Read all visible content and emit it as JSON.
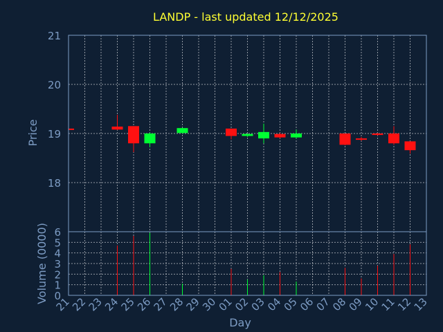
{
  "chart_data": {
    "type": "candlestick",
    "title": "LANDP - last updated 12/12/2025",
    "xlabel": "Day",
    "price_panel": {
      "ylabel": "Price",
      "ylim": [
        17.0,
        21.0
      ],
      "yticks": [
        18,
        19,
        20,
        21
      ]
    },
    "volume_panel": {
      "ylabel": "Volume (0000)",
      "ylim": [
        0,
        6
      ],
      "yticks": [
        0,
        1,
        2,
        3,
        4,
        5,
        6
      ]
    },
    "grid": true,
    "colors": {
      "up": "#00ff33",
      "down": "#ff1111",
      "title": "#ffff33",
      "axis": "#7d9cc4",
      "background": "#0f1f33"
    },
    "x_tick_labels": [
      "21",
      "22",
      "23",
      "24",
      "25",
      "26",
      "27",
      "28",
      "29",
      "30",
      "01",
      "02",
      "03",
      "04",
      "05",
      "06",
      "07",
      "08",
      "09",
      "10",
      "11",
      "12",
      "13"
    ],
    "candles": [
      {
        "day": "21",
        "open": 19.1,
        "high": 19.1,
        "low": 19.08,
        "close": 19.08,
        "volume": 0
      },
      {
        "day": "24",
        "open": 19.14,
        "high": 19.38,
        "low": 19.07,
        "close": 19.08,
        "volume": 4.7
      },
      {
        "day": "25",
        "open": 19.15,
        "high": 19.15,
        "low": 18.62,
        "close": 18.8,
        "volume": 5.6
      },
      {
        "day": "26",
        "open": 18.8,
        "high": 19.02,
        "low": 18.72,
        "close": 19.0,
        "volume": 5.9
      },
      {
        "day": "28",
        "open": 19.01,
        "high": 19.12,
        "low": 19.0,
        "close": 19.11,
        "volume": 1.1
      },
      {
        "day": "01",
        "open": 19.1,
        "high": 19.1,
        "low": 18.88,
        "close": 18.95,
        "volume": 2.5
      },
      {
        "day": "02",
        "open": 18.95,
        "high": 19.0,
        "low": 18.93,
        "close": 18.99,
        "volume": 1.5
      },
      {
        "day": "03",
        "open": 18.9,
        "high": 19.2,
        "low": 18.8,
        "close": 19.03,
        "volume": 1.9
      },
      {
        "day": "04",
        "open": 18.99,
        "high": 19.01,
        "low": 18.9,
        "close": 18.92,
        "volume": 2.2
      },
      {
        "day": "05",
        "open": 18.92,
        "high": 19.08,
        "low": 18.9,
        "close": 19.0,
        "volume": 1.3
      },
      {
        "day": "08",
        "open": 19.0,
        "high": 19.0,
        "low": 18.76,
        "close": 18.77,
        "volume": 2.6
      },
      {
        "day": "09",
        "open": 18.9,
        "high": 18.93,
        "low": 18.85,
        "close": 18.89,
        "volume": 1.6
      },
      {
        "day": "10",
        "open": 19.0,
        "high": 19.01,
        "low": 18.96,
        "close": 18.97,
        "volume": 2.8
      },
      {
        "day": "11",
        "open": 19.0,
        "high": 19.15,
        "low": 18.77,
        "close": 18.8,
        "volume": 3.9
      },
      {
        "day": "12",
        "open": 18.84,
        "high": 18.84,
        "low": 18.59,
        "close": 18.66,
        "volume": 4.8
      }
    ]
  }
}
